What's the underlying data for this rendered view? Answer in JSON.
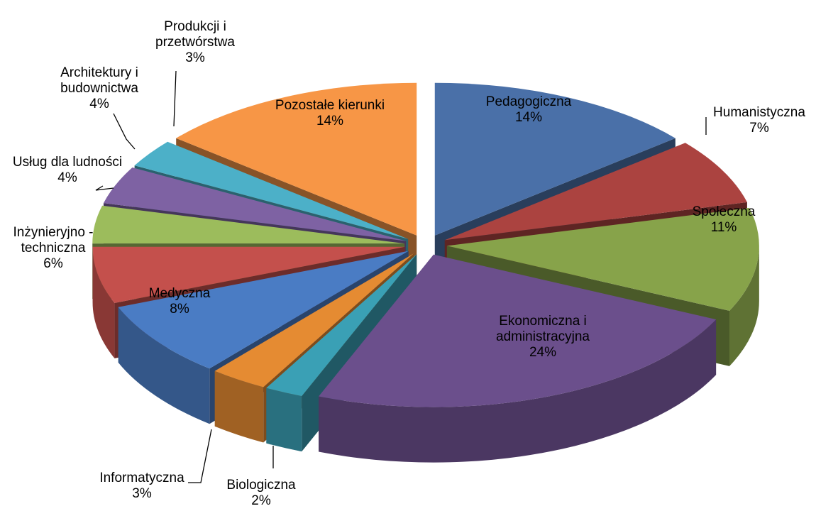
{
  "chart_data": {
    "type": "pie",
    "categories": [
      "Pedagogiczna",
      "Humanistyczna",
      "Społeczna",
      "Ekonomiczna i administracyjna",
      "Biologiczna",
      "Informatyczna",
      "Medyczna",
      "Inżynieryjno - techniczna",
      "Usług dla ludności",
      "Architektury i budownictwa",
      "Produkcji i przetwórstwa",
      "Pozostałe kierunki"
    ],
    "values": [
      14,
      7,
      11,
      24,
      2,
      3,
      8,
      6,
      4,
      4,
      3,
      14
    ],
    "value_labels": [
      "14%",
      "7%",
      "11%",
      "24%",
      "2%",
      "3%",
      "8%",
      "6%",
      "4%",
      "4%",
      "3%",
      "14%"
    ],
    "colors": [
      "#4a70a8",
      "#ab4340",
      "#87a34a",
      "#6b4f8c",
      "#3aa0b5",
      "#e58b32",
      "#4a7cc4",
      "#c4504c",
      "#9cbc5c",
      "#7e62a3",
      "#4cb0c8",
      "#f79646"
    ]
  }
}
